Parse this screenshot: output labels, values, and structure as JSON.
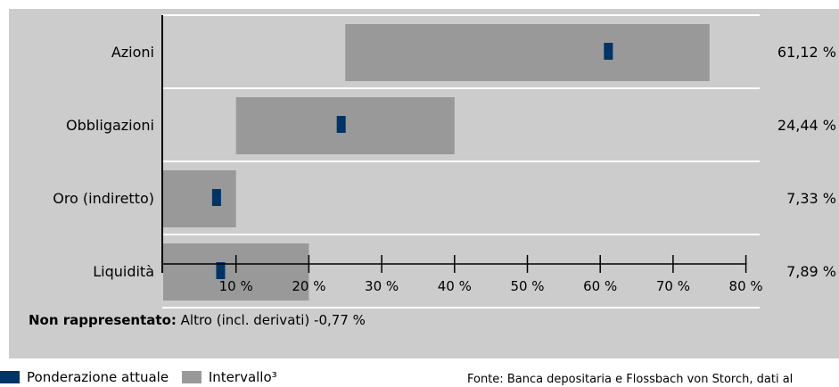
{
  "chart_data": {
    "type": "bar",
    "subtype": "horizontal range bar with current-weight marker",
    "categories": [
      "Azioni",
      "Obbligazioni",
      "Oro (indiretto)",
      "Liquidità"
    ],
    "series": [
      {
        "name": "Ponderazione attuale",
        "values": [
          61.12,
          24.44,
          7.33,
          7.89
        ],
        "color": "#003366"
      },
      {
        "name": "Intervallo³",
        "ranges": [
          [
            25,
            75
          ],
          [
            10,
            40
          ],
          [
            0,
            10
          ],
          [
            0,
            20
          ]
        ],
        "color": "#999999"
      }
    ],
    "value_labels": [
      "61,12 %",
      "24,44 %",
      "7,33 %",
      "7,89 %"
    ],
    "xlim": [
      0,
      80
    ],
    "xticks": [
      10,
      20,
      30,
      40,
      50,
      60,
      70,
      80
    ],
    "xtick_labels": [
      "10 %",
      "20 %",
      "30 %",
      "40 %",
      "50 %",
      "60 %",
      "70 %",
      "80 %"
    ],
    "grid": false,
    "legend_position": "bottom-left",
    "background": "#cccccc",
    "title": "",
    "xlabel": "",
    "ylabel": ""
  },
  "note": {
    "label": "Non rappresentato:",
    "text": "Altro (incl. derivati) -0,77 %"
  },
  "legend": {
    "current": "Ponderazione attuale",
    "range": "Intervallo³"
  },
  "source": "Fonte: Banca depositaria e Flossbach von Storch, dati al"
}
